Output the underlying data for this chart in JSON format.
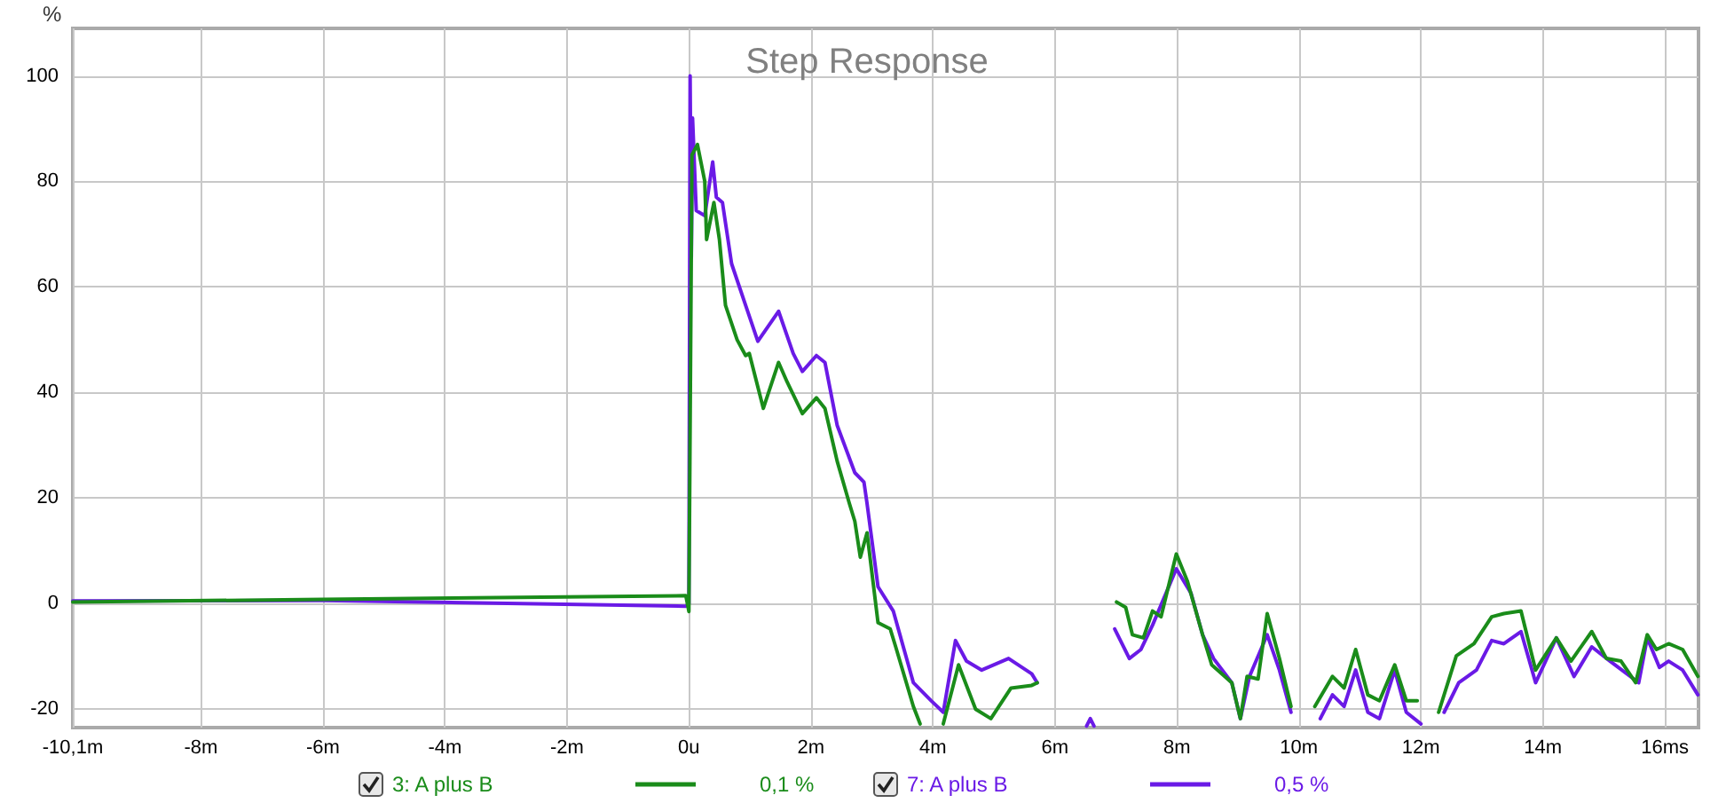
{
  "chart_data": {
    "type": "line",
    "title": "Step Response",
    "ylabel": "%",
    "xlim": [
      -10.1,
      16.55
    ],
    "ylim": [
      -23.5,
      109
    ],
    "xticks": [
      {
        "value": -10.1,
        "label": "-10,1m"
      },
      {
        "value": -8,
        "label": "-8m"
      },
      {
        "value": -6,
        "label": "-6m"
      },
      {
        "value": -4,
        "label": "-4m"
      },
      {
        "value": -2,
        "label": "-2m"
      },
      {
        "value": 0,
        "label": "0u"
      },
      {
        "value": 2,
        "label": "2m"
      },
      {
        "value": 4,
        "label": "4m"
      },
      {
        "value": 6,
        "label": "6m"
      },
      {
        "value": 8,
        "label": "8m"
      },
      {
        "value": 10,
        "label": "10m"
      },
      {
        "value": 12,
        "label": "12m"
      },
      {
        "value": 14,
        "label": "14m"
      },
      {
        "value": 16,
        "label": "16ms"
      }
    ],
    "yticks": [
      -20,
      0,
      20,
      40,
      60,
      80,
      100
    ],
    "grid": true,
    "legend": "bottom",
    "marker": "none",
    "line_style": "solid",
    "annotations": [
      "0,1 %",
      "0,5 %"
    ],
    "series": [
      {
        "name": "3: A plus B",
        "color": "#1a8c1a",
        "x": [
          -10.1,
          -6,
          -0.05,
          0,
          0.05,
          0.14,
          0.26,
          0.29,
          0.41,
          0.5,
          0.6,
          0.79,
          0.93,
          0.99,
          1.22,
          1.47,
          1.61,
          1.86,
          2.09,
          2.23,
          2.43,
          2.63,
          2.72,
          2.81,
          2.92,
          3.1,
          3.3,
          3.39,
          3.68,
          3.79,
          3.85,
          4.1,
          4.17,
          4.42,
          4.7,
          4.95,
          5.28,
          5.62,
          5.71,
          5.96,
          6.9,
          7.01,
          7.16,
          7.27,
          7.45,
          7.6,
          7.74,
          7.99,
          8.17,
          8.42,
          8.57,
          8.9,
          9.04,
          9.15,
          9.33,
          9.48,
          9.68,
          9.87,
          10.06,
          10.26,
          10.55,
          10.74,
          10.93,
          11.13,
          11.32,
          11.57,
          11.76,
          11.94,
          12.09,
          12.29,
          12.58,
          12.87,
          13.16,
          13.36,
          13.64,
          13.88,
          14.22,
          14.46,
          14.8,
          15.04,
          15.28,
          15.52,
          15.71,
          15.86,
          16.06,
          16.29,
          16.54
        ],
        "values": [
          0.3,
          0.8,
          1.5,
          -1.5,
          85,
          87,
          80,
          69,
          76,
          69,
          56.5,
          50,
          47,
          47.4,
          37,
          45.7,
          42,
          36,
          39,
          37,
          27,
          19,
          15.6,
          8.8,
          13.4,
          -3.6,
          -4.8,
          -8.2,
          -19.5,
          -22.8,
          null,
          null,
          -22.8,
          -11.6,
          -20,
          -21.8,
          -16,
          -15.5,
          -15,
          null,
          null,
          0.3,
          -0.7,
          -5.9,
          -6.5,
          -1.4,
          -2.5,
          9.4,
          4.3,
          -5.9,
          -11.6,
          -15,
          -21.8,
          -13.8,
          -14.3,
          -1.9,
          -10.4,
          -19.5,
          null,
          -19.5,
          -13.8,
          -16,
          -8.7,
          -17.3,
          -18.4,
          -11.6,
          -18.4,
          -18.4,
          null,
          -20.6,
          -9.9,
          -7.6,
          -2.5,
          -1.9,
          -1.4,
          -12.6,
          -6.5,
          -10.9,
          -5.3,
          -10.4,
          -10.9,
          -15,
          -5.9,
          -8.7,
          -7.6,
          -8.7,
          -13.8
        ]
      },
      {
        "name": "7: A plus B",
        "color": "#6a1ae6",
        "x": [
          -10.1,
          -6,
          -0.05,
          0,
          0.02,
          0.04,
          0.06,
          0.12,
          0.26,
          0.39,
          0.45,
          0.55,
          0.7,
          0.93,
          1.13,
          1.47,
          1.71,
          1.86,
          2.09,
          2.23,
          2.43,
          2.72,
          2.87,
          2.92,
          3.1,
          3.35,
          3.68,
          3.97,
          4.17,
          4.37,
          4.55,
          4.8,
          5.24,
          5.62,
          5.71,
          5.91,
          6.5,
          6.52,
          6.58,
          6.64,
          6.9,
          6.98,
          7.22,
          7.41,
          7.6,
          7.99,
          8.23,
          8.42,
          8.6,
          8.9,
          9.04,
          9.19,
          9.48,
          9.68,
          9.87,
          10.1,
          10.35,
          10.55,
          10.74,
          10.93,
          11.13,
          11.32,
          11.57,
          11.76,
          12.0,
          12.2,
          12.38,
          12.62,
          12.91,
          13.16,
          13.36,
          13.64,
          13.88,
          14.22,
          14.51,
          14.8,
          15.1,
          15.57,
          15.71,
          15.91,
          16.06,
          16.29,
          16.54
        ],
        "values": [
          0.5,
          0.6,
          -0.5,
          0,
          100,
          65.6,
          92,
          74.5,
          73.5,
          83.7,
          77,
          76,
          64.4,
          56.5,
          49.7,
          55.4,
          47.4,
          44,
          47,
          45.7,
          33.8,
          24.8,
          23,
          19,
          3.2,
          -1.4,
          -15,
          -18.4,
          -20.6,
          -7,
          -10.9,
          -12.6,
          -10.4,
          -13.3,
          -15,
          null,
          null,
          -23.2,
          -21.8,
          -23.2,
          null,
          -4.8,
          -10.4,
          -8.7,
          -4.1,
          6.6,
          2,
          -5.9,
          -10.4,
          -15,
          -21.8,
          -13.8,
          -5.9,
          -12.6,
          -20.6,
          null,
          -21.8,
          -17.3,
          -19.5,
          -12.6,
          -20.6,
          -21.8,
          -12.6,
          -20.6,
          -22.8,
          null,
          -20.6,
          -15,
          -12.6,
          -7,
          -7.6,
          -5.3,
          -15,
          -6.5,
          -13.8,
          -8.2,
          -10.9,
          -15,
          -6.5,
          -12.1,
          -10.9,
          -12.6,
          -17.3
        ]
      }
    ]
  }
}
